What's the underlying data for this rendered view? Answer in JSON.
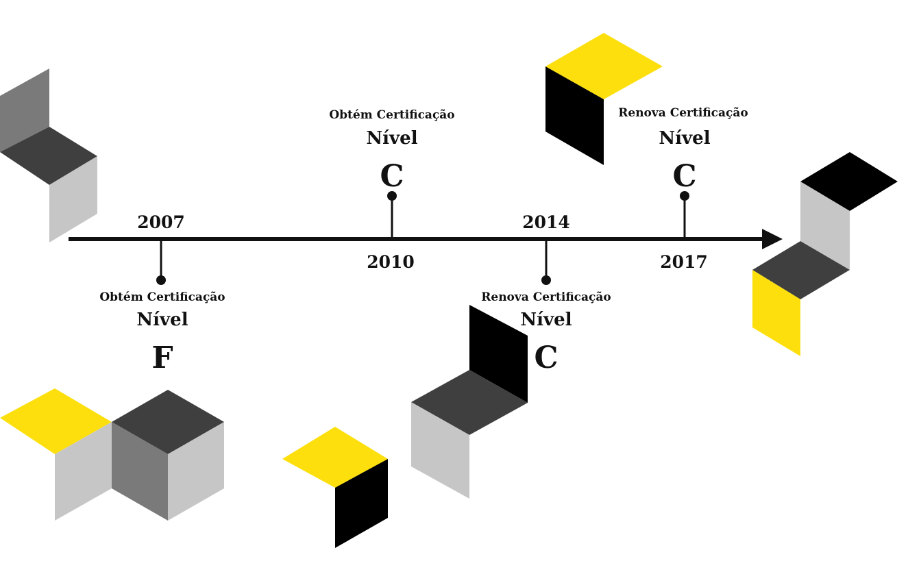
{
  "colors": {
    "yellow": "#fcdf0d",
    "black": "#000000",
    "dark": "#3f3f3f",
    "mid": "#7a7a7a",
    "light": "#c6c6c6",
    "ink": "#111111"
  },
  "timeline": {
    "events": [
      {
        "year": "2007",
        "action": "Obtém Certificação",
        "nivel": "Nível",
        "level": "F"
      },
      {
        "year": "2010",
        "action": "Obtém Certificação",
        "nivel": "Nível",
        "level": "C"
      },
      {
        "year": "2014",
        "action": "Renova Certificação",
        "nivel": "Nível",
        "level": "C"
      },
      {
        "year": "2017",
        "action": "Renova Certificação",
        "nivel": "Nível",
        "level": "C"
      }
    ]
  }
}
